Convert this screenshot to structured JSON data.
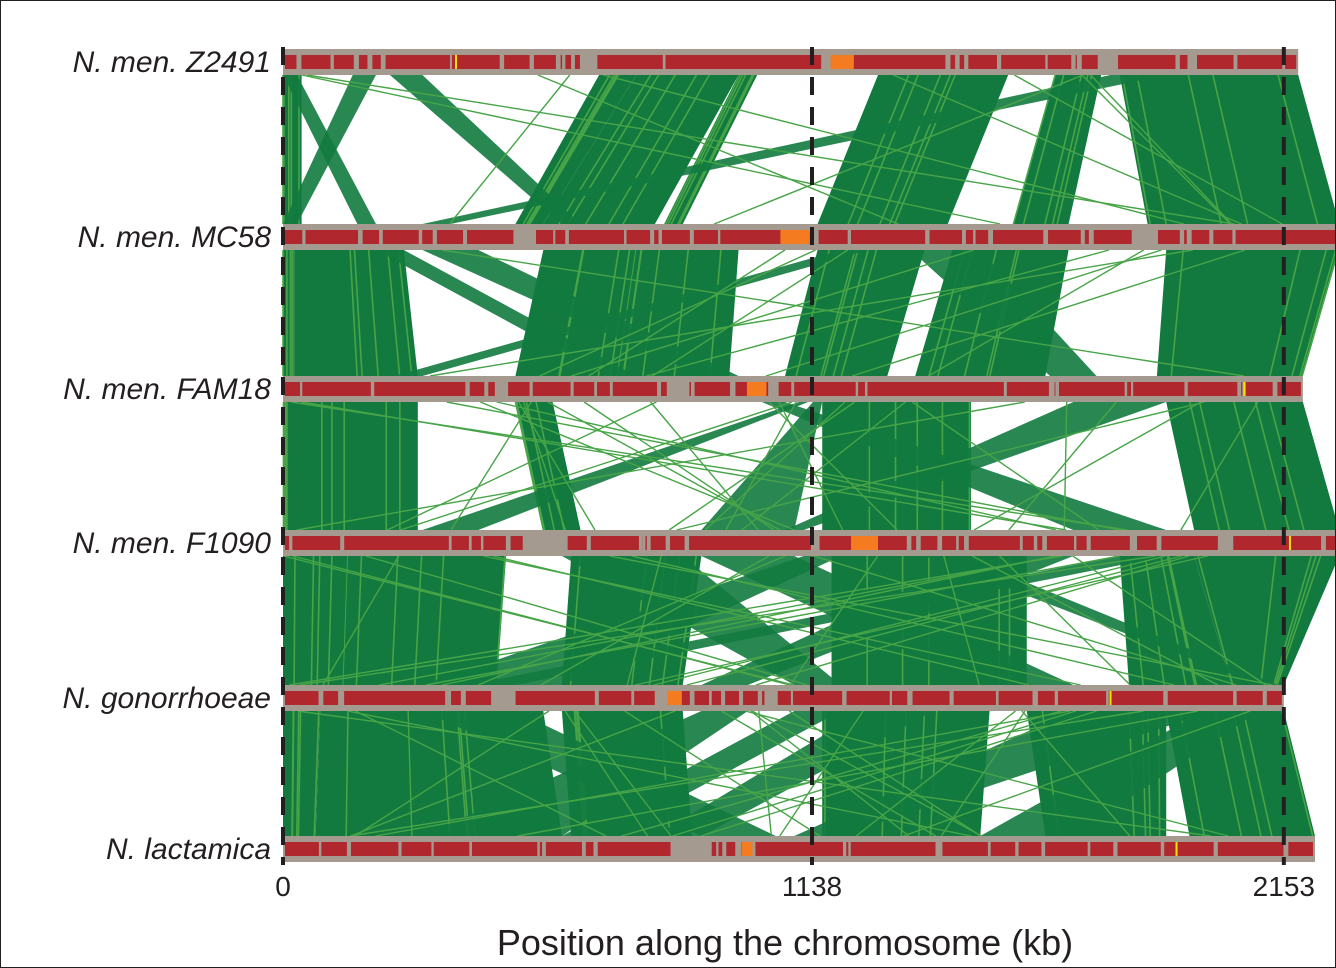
{
  "chart_data": {
    "type": "genome-alignment",
    "x_axis": {
      "label": "Position along the chromosome (kb)",
      "ticks": [
        0,
        1138,
        2153
      ],
      "range_kb": [
        0,
        2270
      ]
    },
    "colors": {
      "match_dark": "#127a3f",
      "match_light": "#47a447",
      "track_bg": "#a59a8f",
      "segment": "#b0272d",
      "highlight": "#f47b20",
      "marker": "#f2e600",
      "guide_line": "#231f20"
    },
    "genomes": [
      {
        "name": "N. men. Z2491",
        "length_kb": 2184,
        "gaps_kb": [
          [
            650,
            672
          ],
          [
            1162,
            1174
          ],
          [
            1760,
            1792
          ],
          [
            1950,
            1962
          ]
        ],
        "highlights_kb": [
          [
            1178,
            1228
          ]
        ],
        "markers_kb": [
          370
        ]
      },
      {
        "name": "N. men. MC58",
        "length_kb": 2272,
        "gaps_kb": [
          [
            500,
            540
          ],
          [
            1138,
            1148
          ],
          [
            1830,
            1878
          ]
        ],
        "highlights_kb": [
          [
            1070,
            1132
          ]
        ],
        "markers_kb": []
      },
      {
        "name": "N. men. FAM18",
        "length_kb": 2194,
        "gaps_kb": [
          [
            460,
            480
          ],
          [
            830,
            870
          ],
          [
            1048,
            1062
          ]
        ],
        "highlights_kb": [
          [
            998,
            1040
          ]
        ],
        "markers_kb": [
          2066
        ]
      },
      {
        "name": "N. men. F1090",
        "length_kb": 2272,
        "gaps_kb": [
          [
            520,
            608
          ],
          [
            1140,
            1150
          ],
          [
            2020,
            2040
          ]
        ],
        "highlights_kb": [
          [
            1222,
            1280
          ]
        ],
        "markers_kb": [
          2164
        ]
      },
      {
        "name": "N. gonorrhoeae",
        "length_kb": 2153,
        "gaps_kb": [
          [
            452,
            496
          ],
          [
            804,
            826
          ],
          [
            1040,
            1060
          ]
        ],
        "highlights_kb": [
          [
            827,
            858
          ]
        ],
        "markers_kb": [
          1778
        ]
      },
      {
        "name": "N. lactamica",
        "length_kb": 2220,
        "gaps_kb": [
          [
            838,
            918
          ],
          [
            1000,
            1012
          ]
        ],
        "highlights_kb": [
          [
            986,
            1010
          ]
        ],
        "markers_kb": [
          1920
        ]
      }
    ]
  }
}
